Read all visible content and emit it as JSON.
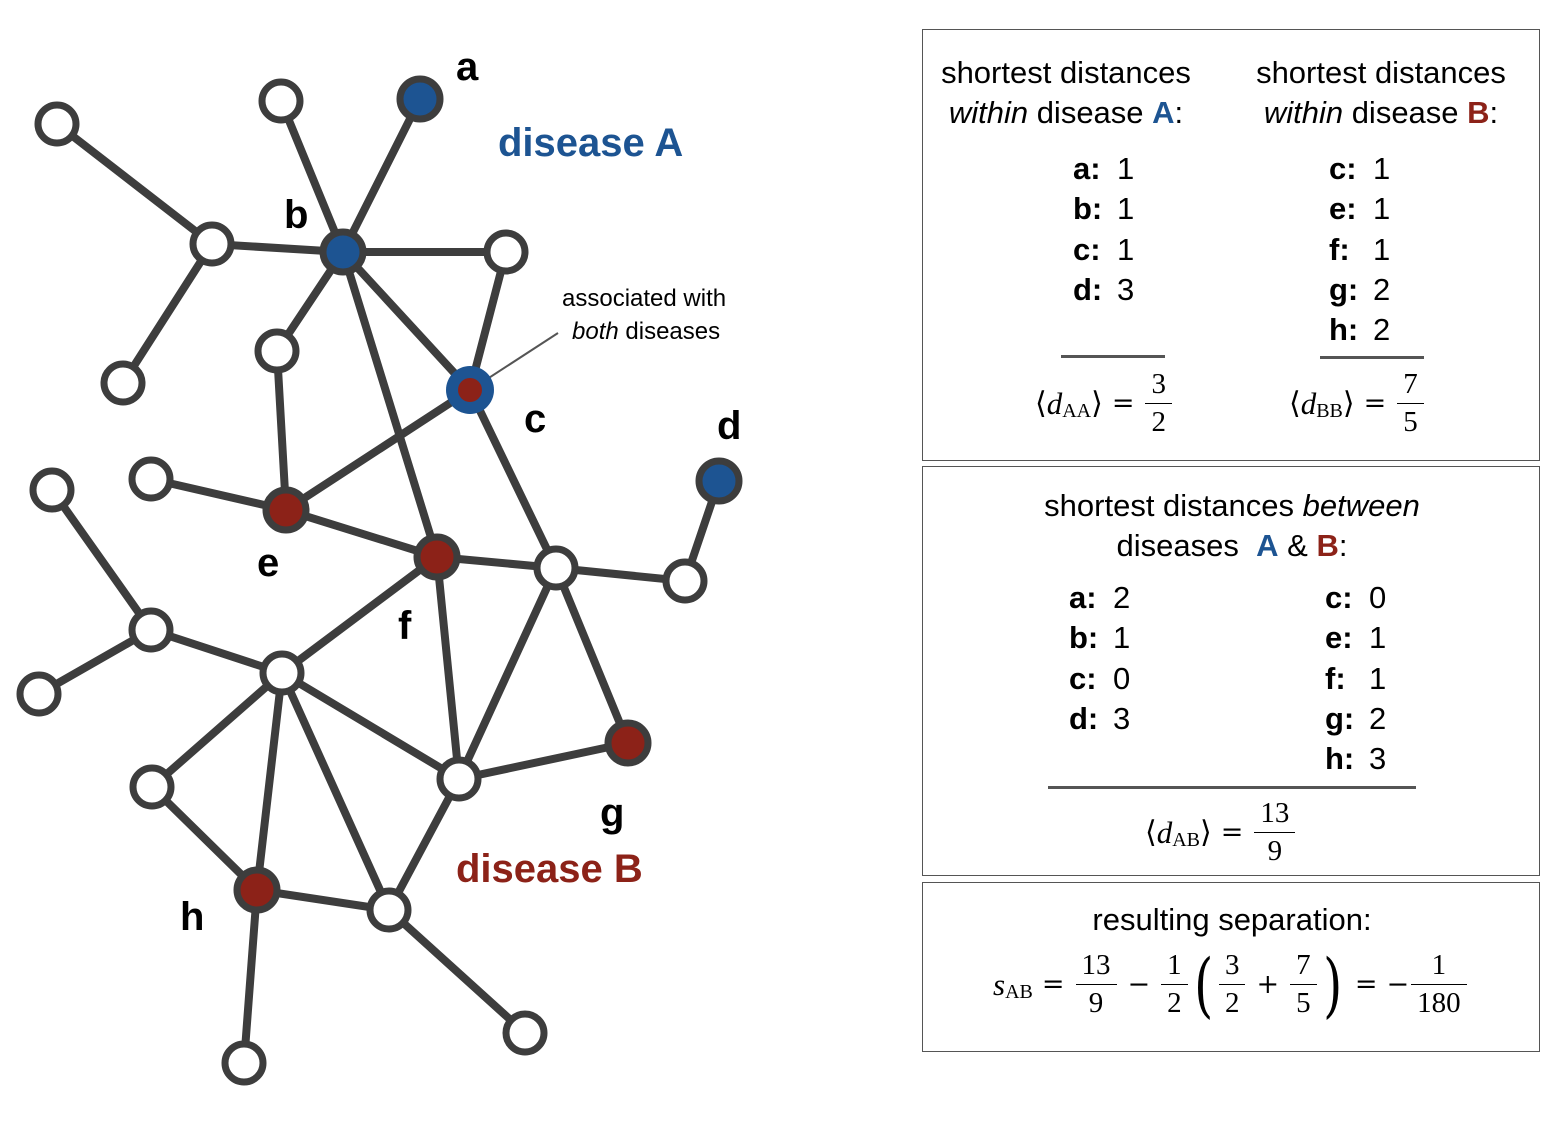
{
  "colors": {
    "diseaseA": "#1d5492",
    "diseaseB": "#8c2218",
    "edge": "#3d3d3d",
    "nodeFill": "#ffffff"
  },
  "network": {
    "node_labels": [
      "a",
      "b",
      "c",
      "d",
      "e",
      "f",
      "g",
      "h"
    ],
    "disease_a_label": "disease A",
    "disease_b_label": "disease B",
    "annotation": {
      "line1": "associated with",
      "line2_italic": "both",
      "line2_rest": " diseases"
    }
  },
  "within": {
    "a": {
      "header_line1": "shortest distances",
      "header_italic": "within",
      "header_rest": " disease ",
      "disease": "A",
      "colon": ":",
      "rows": [
        {
          "k": "a:",
          "v": "1"
        },
        {
          "k": "b:",
          "v": "1"
        },
        {
          "k": "c:",
          "v": "1"
        },
        {
          "k": "d:",
          "v": "3"
        }
      ],
      "mean_sym": "d",
      "mean_sub": "AA",
      "num": "3",
      "den": "2"
    },
    "b": {
      "header_line1": "shortest distances",
      "header_italic": "within",
      "header_rest": " disease ",
      "disease": "B",
      "colon": ":",
      "rows": [
        {
          "k": "c:",
          "v": "1"
        },
        {
          "k": "e:",
          "v": "1"
        },
        {
          "k": "f:",
          "v": "1"
        },
        {
          "k": "g:",
          "v": "2"
        },
        {
          "k": "h:",
          "v": "2"
        }
      ],
      "mean_sym": "d",
      "mean_sub": "BB",
      "num": "7",
      "den": "5"
    }
  },
  "between": {
    "header_line1": "shortest distances ",
    "header_italic": "between",
    "header_line2": "diseases",
    "disease_a": "A",
    "amp": " & ",
    "disease_b": "B",
    "colon": ":",
    "rows_a": [
      {
        "k": "a:",
        "v": "2"
      },
      {
        "k": "b:",
        "v": "1"
      },
      {
        "k": "c:",
        "v": "0"
      },
      {
        "k": "d:",
        "v": "3"
      }
    ],
    "rows_b": [
      {
        "k": "c:",
        "v": "0"
      },
      {
        "k": "e:",
        "v": "1"
      },
      {
        "k": "f:",
        "v": "1"
      },
      {
        "k": "g:",
        "v": "2"
      },
      {
        "k": "h:",
        "v": "3"
      }
    ],
    "mean_sym": "d",
    "mean_sub": "AB",
    "num": "13",
    "den": "9"
  },
  "separation": {
    "header": "resulting separation:",
    "sym": "s",
    "sub": "AB",
    "f1_num": "13",
    "f1_den": "9",
    "minus": "−",
    "f2_num": "1",
    "f2_den": "2",
    "f3_num": "3",
    "f3_den": "2",
    "plus": "+",
    "f4_num": "7",
    "f4_den": "5",
    "equals": "=",
    "neg": "−",
    "f5_num": "1",
    "f5_den": "180"
  }
}
